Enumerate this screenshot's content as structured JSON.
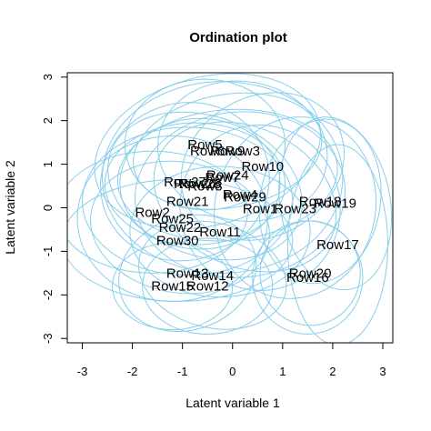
{
  "chart_data": {
    "type": "scatter",
    "title": "Ordination plot",
    "xlabel": "Latent variable 1",
    "ylabel": "Latent variable 2",
    "xlim": [
      -3.3,
      3.2
    ],
    "ylim": [
      -3.1,
      3.1
    ],
    "xticks": [
      -3,
      -2,
      -1,
      0,
      1,
      2,
      3
    ],
    "yticks": [
      -3,
      -2,
      -1,
      0,
      1,
      2,
      3
    ],
    "grid": false,
    "ellipse_color": "#87CEEB",
    "points": [
      {
        "label": "Row1",
        "x": 0.55,
        "y": -0.02
      },
      {
        "label": "Row2",
        "x": -1.6,
        "y": -0.1
      },
      {
        "label": "Row3",
        "x": 0.2,
        "y": 1.3
      },
      {
        "label": "Row4",
        "x": 0.15,
        "y": 0.3
      },
      {
        "label": "Row5",
        "x": -0.55,
        "y": 1.45
      },
      {
        "label": "Row6",
        "x": -0.5,
        "y": 1.3
      },
      {
        "label": "Row7",
        "x": -0.2,
        "y": 0.7
      },
      {
        "label": "Row8",
        "x": -0.55,
        "y": 0.5
      },
      {
        "label": "Row9",
        "x": -0.1,
        "y": 1.3
      },
      {
        "label": "Row10",
        "x": 0.6,
        "y": 0.95
      },
      {
        "label": "Row11",
        "x": -0.25,
        "y": -0.55
      },
      {
        "label": "Row12",
        "x": -0.5,
        "y": -1.8
      },
      {
        "label": "Row13",
        "x": -0.9,
        "y": -1.5
      },
      {
        "label": "Row14",
        "x": -0.4,
        "y": -1.55
      },
      {
        "label": "Row15",
        "x": -1.2,
        "y": -1.8
      },
      {
        "label": "Row16",
        "x": 1.5,
        "y": -1.6
      },
      {
        "label": "Row17",
        "x": 2.1,
        "y": -0.85
      },
      {
        "label": "Row18",
        "x": 1.75,
        "y": 0.15
      },
      {
        "label": "Row19",
        "x": 2.05,
        "y": 0.1
      },
      {
        "label": "Row20",
        "x": 1.55,
        "y": -1.5
      },
      {
        "label": "Row21",
        "x": -0.9,
        "y": 0.15
      },
      {
        "label": "Row22",
        "x": -1.05,
        "y": -0.45
      },
      {
        "label": "Row23",
        "x": 1.25,
        "y": -0.02
      },
      {
        "label": "Row24",
        "x": -0.1,
        "y": 0.75
      },
      {
        "label": "Row25",
        "x": -1.2,
        "y": -0.25
      },
      {
        "label": "Row26",
        "x": -0.75,
        "y": 0.55
      },
      {
        "label": "Row27",
        "x": -0.95,
        "y": 0.6
      },
      {
        "label": "Row28",
        "x": -0.65,
        "y": 0.55
      },
      {
        "label": "Row29",
        "x": 0.25,
        "y": 0.25
      },
      {
        "label": "Row30",
        "x": -1.1,
        "y": -0.75
      }
    ],
    "ellipses": [
      {
        "cx": 0.55,
        "cy": 0.0,
        "rx": 1.6,
        "ry": 1.9,
        "angle": 10
      },
      {
        "cx": -1.6,
        "cy": -0.1,
        "rx": 1.9,
        "ry": 1.4,
        "angle": 0
      },
      {
        "cx": 0.2,
        "cy": 1.3,
        "rx": 1.7,
        "ry": 1.6,
        "angle": -10
      },
      {
        "cx": 0.15,
        "cy": 0.3,
        "rx": 2.1,
        "ry": 1.9,
        "angle": 5
      },
      {
        "cx": -0.55,
        "cy": 1.45,
        "rx": 1.6,
        "ry": 1.5,
        "angle": 0
      },
      {
        "cx": -0.5,
        "cy": 1.3,
        "rx": 2.3,
        "ry": 1.7,
        "angle": 15
      },
      {
        "cx": -0.2,
        "cy": 0.7,
        "rx": 2.4,
        "ry": 2.2,
        "angle": 0
      },
      {
        "cx": -0.55,
        "cy": 0.5,
        "rx": 2.0,
        "ry": 1.6,
        "angle": -20
      },
      {
        "cx": -0.1,
        "cy": 1.3,
        "rx": 1.9,
        "ry": 1.3,
        "angle": 10
      },
      {
        "cx": 0.6,
        "cy": 0.95,
        "rx": 1.7,
        "ry": 1.6,
        "angle": 30
      },
      {
        "cx": -0.25,
        "cy": -0.55,
        "rx": 1.8,
        "ry": 1.5,
        "angle": 0
      },
      {
        "cx": -0.5,
        "cy": -1.8,
        "rx": 1.3,
        "ry": 1.1,
        "angle": 0
      },
      {
        "cx": -0.9,
        "cy": -1.5,
        "rx": 1.4,
        "ry": 1.3,
        "angle": 20
      },
      {
        "cx": -0.4,
        "cy": -1.55,
        "rx": 1.5,
        "ry": 1.2,
        "angle": -15
      },
      {
        "cx": -1.2,
        "cy": -1.8,
        "rx": 1.2,
        "ry": 1.0,
        "angle": 0
      },
      {
        "cx": 1.5,
        "cy": -1.6,
        "rx": 1.1,
        "ry": 1.3,
        "angle": 0
      },
      {
        "cx": 2.1,
        "cy": -0.85,
        "rx": 1.0,
        "ry": 2.3,
        "angle": 0
      },
      {
        "cx": 1.75,
        "cy": 0.15,
        "rx": 1.2,
        "ry": 1.9,
        "angle": -10
      },
      {
        "cx": 2.05,
        "cy": 0.1,
        "rx": 1.1,
        "ry": 2.0,
        "angle": 10
      },
      {
        "cx": 1.55,
        "cy": -1.5,
        "rx": 1.0,
        "ry": 1.2,
        "angle": 0
      },
      {
        "cx": -0.9,
        "cy": 0.15,
        "rx": 2.1,
        "ry": 1.7,
        "angle": 0
      },
      {
        "cx": -1.05,
        "cy": -0.45,
        "rx": 1.8,
        "ry": 1.5,
        "angle": -10
      },
      {
        "cx": 1.25,
        "cy": 0.0,
        "rx": 1.6,
        "ry": 2.1,
        "angle": -15
      },
      {
        "cx": -0.1,
        "cy": 0.75,
        "rx": 2.2,
        "ry": 1.5,
        "angle": 5
      },
      {
        "cx": -1.2,
        "cy": -0.25,
        "rx": 1.9,
        "ry": 1.9,
        "angle": 0
      },
      {
        "cx": -0.75,
        "cy": 0.55,
        "rx": 1.8,
        "ry": 1.4,
        "angle": 0
      },
      {
        "cx": -0.95,
        "cy": 0.6,
        "rx": 1.7,
        "ry": 1.8,
        "angle": 20
      },
      {
        "cx": -0.65,
        "cy": 0.55,
        "rx": 1.6,
        "ry": 1.5,
        "angle": 0
      },
      {
        "cx": 0.25,
        "cy": 0.25,
        "rx": 1.9,
        "ry": 1.6,
        "angle": -25
      },
      {
        "cx": -1.1,
        "cy": -0.75,
        "rx": 2.3,
        "ry": 1.4,
        "angle": 0
      }
    ]
  }
}
